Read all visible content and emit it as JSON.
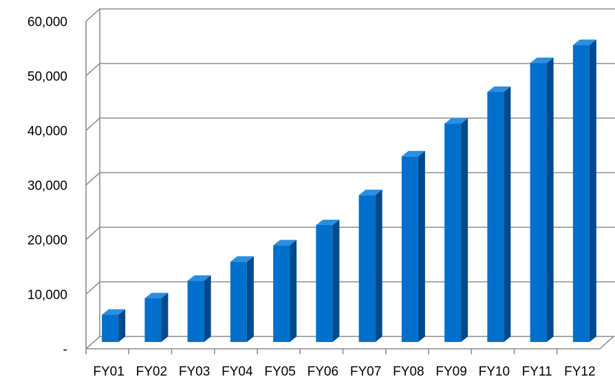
{
  "chart_data": {
    "type": "bar",
    "title": "",
    "xlabel": "",
    "ylabel": "",
    "categories": [
      "FY01",
      "FY02",
      "FY03",
      "FY04",
      "FY05",
      "FY06",
      "FY07",
      "FY08",
      "FY09",
      "FY10",
      "FY11",
      "FY12"
    ],
    "values": [
      5000,
      8000,
      11200,
      14700,
      17700,
      21400,
      26900,
      34000,
      40000,
      45800,
      51100,
      54400
    ],
    "ylim": [
      0,
      60000
    ],
    "yticks": [
      0,
      10000,
      20000,
      30000,
      40000,
      50000,
      60000
    ],
    "ytick_labels": [
      "-",
      "10,000",
      "20,000",
      "30,000",
      "40,000",
      "50,000",
      "60,000"
    ],
    "grid": true,
    "legend": "none",
    "colors": {
      "bar_front": "#0070cc",
      "bar_side": "#004a8c",
      "bar_top": "#2a8fe0",
      "grid": "#8c8c8c"
    }
  }
}
